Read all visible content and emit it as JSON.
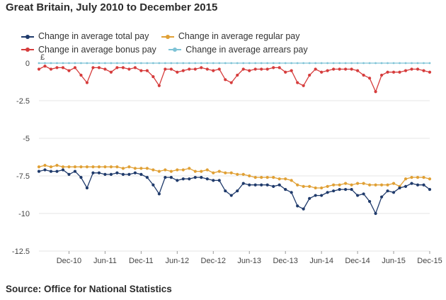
{
  "page": {
    "title": "Great Britain, July 2010 to December 2015",
    "source": "Source: Office for National Statistics"
  },
  "chart_data": {
    "type": "line",
    "title": "Great Britain, July 2010 to December 2015",
    "y_unit_label": "£",
    "xlabel": "",
    "ylabel": "",
    "ylim": [
      -12.5,
      0
    ],
    "yticks": [
      0,
      -2.5,
      -5,
      -7.5,
      -10,
      -12.5
    ],
    "ytick_labels": [
      "0",
      "-2.5",
      "-5",
      "-7.5",
      "-10",
      "-12.5"
    ],
    "xticks": [
      {
        "label": "Dec-10",
        "index": 5
      },
      {
        "label": "Jun-11",
        "index": 11
      },
      {
        "label": "Dec-11",
        "index": 17
      },
      {
        "label": "Jun-12",
        "index": 23
      },
      {
        "label": "Dec-12",
        "index": 29
      },
      {
        "label": "Jun-13",
        "index": 35
      },
      {
        "label": "Dec-13",
        "index": 41
      },
      {
        "label": "Jun-14",
        "index": 47
      },
      {
        "label": "Dec-14",
        "index": 53
      },
      {
        "label": "Jun-15",
        "index": 59
      },
      {
        "label": "Dec-15",
        "index": 65
      }
    ],
    "grid": "horizontal",
    "legend_position": "top",
    "categories": [
      "Jul-10",
      "Aug-10",
      "Sep-10",
      "Oct-10",
      "Nov-10",
      "Dec-10",
      "Jan-11",
      "Feb-11",
      "Mar-11",
      "Apr-11",
      "May-11",
      "Jun-11",
      "Jul-11",
      "Aug-11",
      "Sep-11",
      "Oct-11",
      "Nov-11",
      "Dec-11",
      "Jan-12",
      "Feb-12",
      "Mar-12",
      "Apr-12",
      "May-12",
      "Jun-12",
      "Jul-12",
      "Aug-12",
      "Sep-12",
      "Oct-12",
      "Nov-12",
      "Dec-12",
      "Jan-13",
      "Feb-13",
      "Mar-13",
      "Apr-13",
      "May-13",
      "Jun-13",
      "Jul-13",
      "Aug-13",
      "Sep-13",
      "Oct-13",
      "Nov-13",
      "Dec-13",
      "Jan-14",
      "Feb-14",
      "Mar-14",
      "Apr-14",
      "May-14",
      "Jun-14",
      "Jul-14",
      "Aug-14",
      "Sep-14",
      "Oct-14",
      "Nov-14",
      "Dec-14",
      "Jan-15",
      "Feb-15",
      "Mar-15",
      "Apr-15",
      "May-15",
      "Jun-15",
      "Jul-15",
      "Aug-15",
      "Sep-15",
      "Oct-15",
      "Nov-15",
      "Dec-15"
    ],
    "series": [
      {
        "name": "Change in average total pay",
        "color": "#1f3a6b",
        "values": [
          -7.2,
          -7.1,
          -7.2,
          -7.2,
          -7.1,
          -7.4,
          -7.2,
          -7.6,
          -8.3,
          -7.3,
          -7.3,
          -7.4,
          -7.4,
          -7.3,
          -7.4,
          -7.4,
          -7.3,
          -7.4,
          -7.6,
          -8.1,
          -8.7,
          -7.6,
          -7.6,
          -7.8,
          -7.7,
          -7.7,
          -7.6,
          -7.6,
          -7.7,
          -7.8,
          -7.8,
          -8.5,
          -8.8,
          -8.5,
          -8.0,
          -8.1,
          -8.1,
          -8.1,
          -8.1,
          -8.2,
          -8.1,
          -8.4,
          -8.6,
          -9.5,
          -9.7,
          -9.0,
          -8.8,
          -8.8,
          -8.6,
          -8.5,
          -8.4,
          -8.4,
          -8.4,
          -8.8,
          -8.7,
          -9.2,
          -10.0,
          -8.9,
          -8.5,
          -8.6,
          -8.3,
          -8.2,
          -8.0,
          -8.1,
          -8.1,
          -8.4
        ]
      },
      {
        "name": "Change in average regular pay",
        "color": "#e0a035",
        "values": [
          -6.9,
          -6.8,
          -6.9,
          -6.8,
          -6.9,
          -6.9,
          -6.9,
          -6.9,
          -6.9,
          -6.9,
          -6.9,
          -6.9,
          -6.9,
          -6.9,
          -7.0,
          -6.9,
          -7.0,
          -7.0,
          -7.0,
          -7.1,
          -7.2,
          -7.1,
          -7.2,
          -7.1,
          -7.1,
          -7.0,
          -7.2,
          -7.2,
          -7.1,
          -7.3,
          -7.2,
          -7.3,
          -7.3,
          -7.4,
          -7.4,
          -7.5,
          -7.6,
          -7.6,
          -7.6,
          -7.6,
          -7.7,
          -7.7,
          -7.8,
          -8.1,
          -8.2,
          -8.2,
          -8.3,
          -8.3,
          -8.2,
          -8.1,
          -8.1,
          -8.0,
          -8.1,
          -8.0,
          -8.0,
          -8.1,
          -8.1,
          -8.1,
          -8.1,
          -8.0,
          -8.2,
          -7.7,
          -7.6,
          -7.6,
          -7.6,
          -7.7
        ]
      },
      {
        "name": "Change in average bonus pay",
        "color": "#d63c3c",
        "values": [
          -0.4,
          -0.2,
          -0.4,
          -0.3,
          -0.3,
          -0.5,
          -0.3,
          -0.8,
          -1.3,
          -0.3,
          -0.3,
          -0.4,
          -0.6,
          -0.3,
          -0.3,
          -0.4,
          -0.3,
          -0.5,
          -0.5,
          -0.9,
          -1.5,
          -0.4,
          -0.4,
          -0.6,
          -0.5,
          -0.4,
          -0.4,
          -0.3,
          -0.4,
          -0.5,
          -0.4,
          -1.1,
          -1.3,
          -0.8,
          -0.4,
          -0.5,
          -0.4,
          -0.4,
          -0.4,
          -0.3,
          -0.3,
          -0.6,
          -0.5,
          -1.3,
          -1.5,
          -0.8,
          -0.4,
          -0.6,
          -0.5,
          -0.4,
          -0.4,
          -0.4,
          -0.4,
          -0.5,
          -0.8,
          -1.0,
          -1.9,
          -0.8,
          -0.6,
          -0.6,
          -0.6,
          -0.5,
          -0.4,
          -0.4,
          -0.5,
          -0.6
        ]
      },
      {
        "name": "Change in average arrears pay",
        "color": "#7ec3d6",
        "values": [
          0,
          0,
          0,
          0,
          0,
          0,
          0,
          0,
          0,
          0,
          0,
          0,
          0,
          0,
          0,
          0,
          0,
          0,
          0,
          0,
          0,
          0,
          0,
          0,
          0,
          0,
          0,
          0,
          0,
          0,
          0,
          0,
          0,
          0,
          0,
          0,
          0,
          0,
          0,
          0,
          0,
          0,
          0,
          0,
          0,
          0,
          0,
          0,
          0,
          0,
          0,
          0,
          0,
          0,
          0,
          0,
          0,
          0,
          0,
          0,
          0,
          0,
          0,
          0,
          0,
          0
        ]
      }
    ]
  }
}
